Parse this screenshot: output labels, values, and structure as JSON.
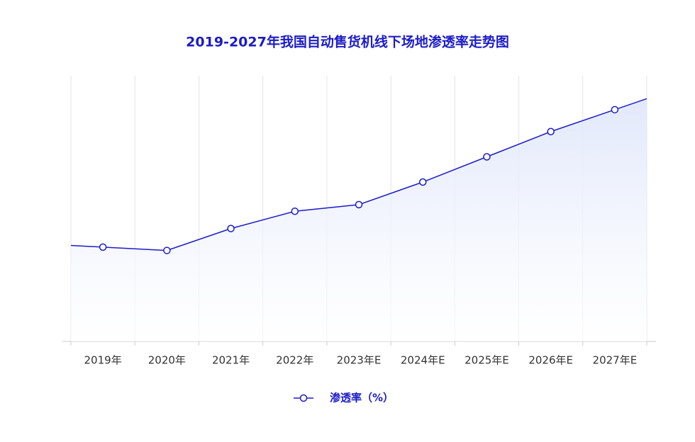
{
  "chart_data": {
    "type": "line",
    "title": "2019-2027年我国自动售货机线下场地渗透率走势图",
    "categories": [
      "2019年",
      "2020年",
      "2021年",
      "2022年",
      "2023年E",
      "2024年E",
      "2025年E",
      "2026年E",
      "2027年E"
    ],
    "series": [
      {
        "name": "渗透率（%）",
        "color": "#1c1cc8",
        "values": [
          14.2,
          13.7,
          17.0,
          19.6,
          20.6,
          24.0,
          27.8,
          31.6,
          34.9
        ]
      }
    ],
    "ylim": [
      0,
      40
    ],
    "grid": true
  }
}
